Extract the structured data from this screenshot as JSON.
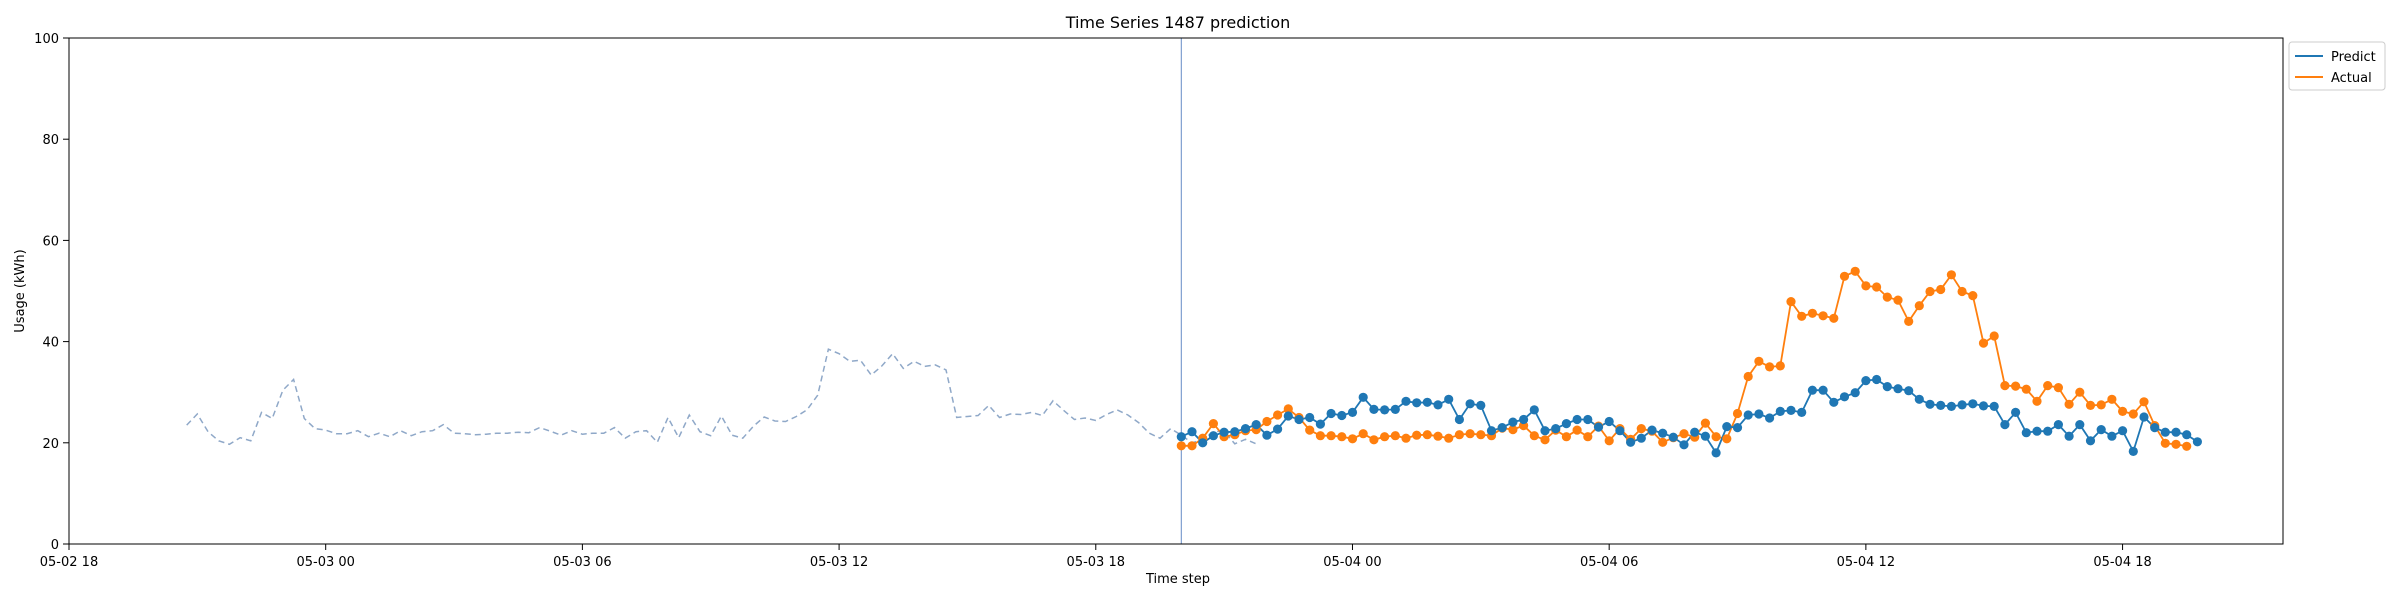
{
  "chart_data": {
    "type": "line",
    "title": "Time Series 1487 prediction",
    "xlabel": "Time step",
    "ylabel": "Usage (kWh)",
    "ylim": [
      0,
      100
    ],
    "yticks": [
      0,
      20,
      40,
      60,
      80,
      100
    ],
    "x_range": [
      "05-02 18:00",
      "05-04 21:45"
    ],
    "xticks": [
      {
        "t": "05-02 18:00",
        "label": "05-02 18"
      },
      {
        "t": "05-03 00:00",
        "label": "05-03 00"
      },
      {
        "t": "05-03 06:00",
        "label": "05-03 06"
      },
      {
        "t": "05-03 12:00",
        "label": "05-03 12"
      },
      {
        "t": "05-03 18:00",
        "label": "05-03 18"
      },
      {
        "t": "05-04 00:00",
        "label": "05-04 00"
      },
      {
        "t": "05-04 06:00",
        "label": "05-04 06"
      },
      {
        "t": "05-04 12:00",
        "label": "05-04 12"
      },
      {
        "t": "05-04 18:00",
        "label": "05-04 18"
      }
    ],
    "interval_minutes": 15,
    "forecast_start": "05-03 20:00",
    "legend_position": "top-right, outside plot",
    "history": {
      "style": "dashed",
      "color": "#8fa8c8",
      "start": "05-02 20:45",
      "values": [
        23.5,
        25.7,
        22.2,
        20.4,
        19.7,
        21.0,
        20.4,
        26.0,
        24.8,
        30.4,
        32.5,
        24.8,
        22.8,
        22.5,
        21.8,
        21.8,
        22.4,
        21.2,
        21.9,
        21.2,
        22.4,
        21.4,
        22.2,
        22.4,
        23.6,
        21.9,
        21.8,
        21.6,
        21.7,
        21.9,
        21.9,
        22.1,
        22.0,
        23.0,
        22.3,
        21.5,
        22.4,
        21.7,
        21.9,
        21.9,
        23.0,
        20.9,
        22.2,
        22.4,
        20.1,
        25.0,
        21.0,
        25.5,
        22.2,
        21.4,
        25.3,
        21.5,
        20.9,
        23.3,
        25.1,
        24.3,
        24.2,
        25.2,
        26.5,
        29.4,
        38.5,
        37.6,
        36.1,
        36.3,
        33.4,
        35.2,
        37.6,
        34.7,
        36.1,
        35.1,
        35.4,
        34.4,
        25.0,
        25.2,
        25.4,
        27.4,
        25.0,
        25.7,
        25.6,
        26.0,
        25.4,
        28.3,
        26.4,
        24.6,
        24.9,
        24.4,
        25.6,
        26.5,
        25.5,
        24.0,
        21.9,
        20.9,
        22.8,
        21.5,
        20.0,
        20.6,
        22.2,
        22.3,
        19.8,
        20.7,
        19.8
      ]
    },
    "series": [
      {
        "name": "Predict",
        "color": "#1f77b4",
        "start": "05-03 20:00",
        "values": [
          21.2,
          22.2,
          20.0,
          21.4,
          22.1,
          22.2,
          22.8,
          23.6,
          21.5,
          22.7,
          25.3,
          24.6,
          25.0,
          23.7,
          25.8,
          25.4,
          26.0,
          29.0,
          26.6,
          26.5,
          26.6,
          28.2,
          27.9,
          28.0,
          27.5,
          28.6,
          24.6,
          27.7,
          27.4,
          22.4,
          23.0,
          24.1,
          24.6,
          26.5,
          22.4,
          22.8,
          23.8,
          24.6,
          24.6,
          23.1,
          24.2,
          22.4,
          20.1,
          20.9,
          22.5,
          21.9,
          21.1,
          19.6,
          22.1,
          21.3,
          18.0,
          23.2,
          23.0,
          25.5,
          25.7,
          24.9,
          26.2,
          26.4,
          26.0,
          30.4,
          30.4,
          28.0,
          29.1,
          29.9,
          32.3,
          32.5,
          31.1,
          30.7,
          30.3,
          28.6,
          27.6,
          27.4,
          27.2,
          27.5,
          27.7,
          27.3,
          27.2,
          23.6,
          26.0,
          22.0,
          22.3,
          22.3,
          23.6,
          21.3,
          23.6,
          20.4,
          22.6,
          21.3,
          22.4,
          18.3,
          25.1,
          23.0,
          22.1,
          22.1,
          21.6,
          20.2
        ]
      },
      {
        "name": "Actual",
        "color": "#ff7f0e",
        "start": "05-03 20:00",
        "values": [
          19.4,
          19.4,
          20.9,
          23.8,
          21.2,
          21.6,
          22.4,
          22.6,
          24.2,
          25.5,
          26.7,
          25.0,
          22.5,
          21.4,
          21.4,
          21.2,
          20.8,
          21.8,
          20.6,
          21.2,
          21.4,
          20.9,
          21.5,
          21.6,
          21.3,
          20.9,
          21.6,
          21.8,
          21.6,
          21.4,
          22.9,
          22.6,
          23.4,
          21.4,
          20.6,
          22.5,
          21.2,
          22.5,
          21.2,
          23.3,
          20.4,
          22.8,
          20.7,
          22.8,
          22.3,
          20.1,
          21.0,
          21.8,
          21.1,
          23.9,
          21.2,
          20.8,
          25.8,
          33.1,
          36.1,
          35.0,
          35.2,
          47.9,
          45.0,
          45.6,
          45.1,
          44.6,
          52.9,
          53.9,
          51.0,
          50.8,
          48.8,
          48.2,
          44.0,
          47.1,
          49.9,
          50.3,
          53.2,
          49.9,
          49.1,
          39.7,
          41.1,
          31.3,
          31.2,
          30.6,
          28.2,
          31.3,
          30.9,
          27.6,
          30.0,
          27.4,
          27.5,
          28.6,
          26.2,
          25.7,
          28.1,
          23.4,
          19.9,
          19.7,
          19.3
        ]
      }
    ]
  }
}
